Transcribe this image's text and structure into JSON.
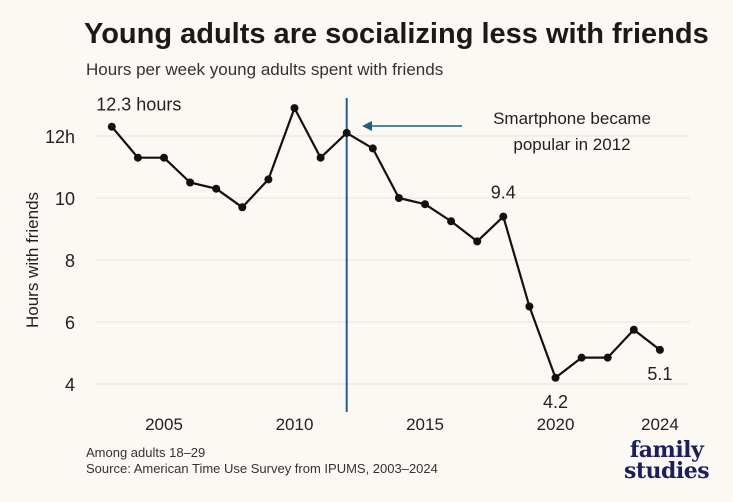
{
  "chart_data": {
    "type": "line",
    "title": "Young adults are socializing less with friends",
    "subtitle": "Hours per week young adults spent with friends",
    "xlabel": "",
    "ylabel": "Hours with friends",
    "x": [
      2003,
      2004,
      2005,
      2006,
      2007,
      2008,
      2009,
      2010,
      2011,
      2012,
      2013,
      2014,
      2015,
      2016,
      2017,
      2018,
      2019,
      2020,
      2021,
      2022,
      2023,
      2024
    ],
    "values": [
      12.3,
      11.3,
      11.3,
      10.5,
      10.3,
      9.7,
      10.6,
      12.9,
      11.3,
      12.1,
      11.6,
      10.0,
      9.8,
      9.25,
      8.6,
      9.4,
      6.5,
      4.2,
      4.85,
      4.85,
      5.75,
      5.1
    ],
    "xlim": [
      2002,
      2025.5
    ],
    "ylim": [
      3.3,
      13.5
    ],
    "xticks": [
      2005,
      2010,
      2015,
      2020,
      2024
    ],
    "xtick_labels": [
      "2005",
      "2010",
      "2015",
      "2020",
      "2024"
    ],
    "yticks": [
      12,
      10,
      8,
      6,
      4
    ],
    "ytick_labels": [
      "12h",
      "10",
      "8",
      "6",
      "4"
    ],
    "grid": true,
    "line_color": "#111111",
    "marker_line_color": "#1f5f85",
    "marker_line_x": 2012,
    "annotations": [
      {
        "text": "12.3 hours",
        "x": 2003,
        "y": 12.3
      },
      {
        "text": "9.4",
        "x": 2018,
        "y": 9.4
      },
      {
        "text": "4.2",
        "x": 2020,
        "y": 4.2
      },
      {
        "text": "5.1",
        "x": 2024,
        "y": 5.1
      }
    ],
    "callout_line1": "Smartphone became",
    "callout_line2": "popular in 2012"
  },
  "footer": {
    "note": "Among adults 18–29",
    "source": "Source: American Time Use Survey from IPUMS, 2003–2024"
  },
  "logo": {
    "line1": "family",
    "line2": "studies"
  }
}
